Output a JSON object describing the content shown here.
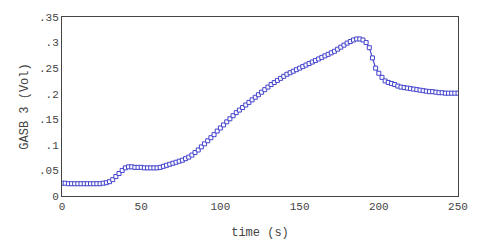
{
  "chart_data": {
    "type": "line",
    "xlabel": "time (s)",
    "ylabel": "GASB 3 (Vol)",
    "xlim": [
      0,
      250
    ],
    "ylim": [
      0,
      0.35
    ],
    "xticks": [
      0,
      50,
      100,
      150,
      200,
      250
    ],
    "yticks": [
      0,
      {
        "value": 0.05,
        "label": ".05"
      },
      {
        "value": 0.1,
        "label": ".1"
      },
      {
        "value": 0.15,
        "label": ".15"
      },
      {
        "value": 0.2,
        "label": ".2"
      },
      {
        "value": 0.25,
        "label": ".25"
      },
      {
        "value": 0.3,
        "label": ".3"
      },
      {
        "value": 0.35,
        "label": ".35"
      }
    ],
    "grid": false,
    "color": "#4444cc",
    "marker": "square",
    "x": [
      0,
      2,
      4,
      6,
      8,
      10,
      12,
      14,
      16,
      18,
      20,
      22,
      24,
      26,
      28,
      30,
      32,
      34,
      36,
      38,
      40,
      42,
      44,
      46,
      48,
      50,
      52,
      54,
      56,
      58,
      60,
      62,
      64,
      66,
      68,
      70,
      72,
      74,
      76,
      78,
      80,
      82,
      84,
      86,
      88,
      90,
      92,
      94,
      96,
      98,
      100,
      102,
      104,
      106,
      108,
      110,
      112,
      114,
      116,
      118,
      120,
      122,
      124,
      126,
      128,
      130,
      132,
      134,
      136,
      138,
      140,
      142,
      144,
      146,
      148,
      150,
      152,
      154,
      156,
      158,
      160,
      162,
      164,
      166,
      168,
      170,
      172,
      174,
      176,
      178,
      180,
      182,
      184,
      186,
      188,
      190,
      192,
      194,
      196,
      198,
      200,
      202,
      204,
      206,
      208,
      210,
      212,
      214,
      216,
      218,
      220,
      222,
      224,
      226,
      228,
      230,
      232,
      234,
      236,
      238,
      240,
      242,
      244,
      246,
      248,
      250
    ],
    "values": [
      0.025,
      0.025,
      0.024,
      0.024,
      0.024,
      0.024,
      0.024,
      0.024,
      0.024,
      0.024,
      0.024,
      0.024,
      0.024,
      0.025,
      0.026,
      0.028,
      0.032,
      0.038,
      0.044,
      0.05,
      0.055,
      0.057,
      0.057,
      0.056,
      0.056,
      0.056,
      0.055,
      0.055,
      0.055,
      0.055,
      0.055,
      0.056,
      0.058,
      0.06,
      0.062,
      0.064,
      0.066,
      0.068,
      0.07,
      0.073,
      0.076,
      0.08,
      0.085,
      0.09,
      0.096,
      0.102,
      0.108,
      0.114,
      0.12,
      0.127,
      0.133,
      0.139,
      0.145,
      0.151,
      0.157,
      0.163,
      0.168,
      0.173,
      0.178,
      0.183,
      0.188,
      0.193,
      0.198,
      0.203,
      0.208,
      0.213,
      0.218,
      0.222,
      0.226,
      0.23,
      0.234,
      0.238,
      0.241,
      0.244,
      0.247,
      0.25,
      0.253,
      0.256,
      0.259,
      0.262,
      0.265,
      0.268,
      0.271,
      0.274,
      0.277,
      0.28,
      0.283,
      0.287,
      0.291,
      0.295,
      0.299,
      0.302,
      0.305,
      0.307,
      0.307,
      0.305,
      0.3,
      0.29,
      0.27,
      0.25,
      0.24,
      0.232,
      0.225,
      0.222,
      0.22,
      0.218,
      0.215,
      0.213,
      0.212,
      0.211,
      0.21,
      0.209,
      0.208,
      0.207,
      0.206,
      0.205,
      0.204,
      0.204,
      0.203,
      0.202,
      0.202,
      0.201,
      0.201,
      0.201,
      0.201,
      0.201
    ]
  }
}
